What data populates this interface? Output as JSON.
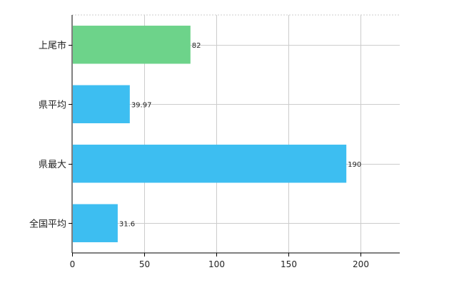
{
  "chart_data": {
    "type": "bar",
    "orientation": "horizontal",
    "categories": [
      "上尾市",
      "県平均",
      "県最大",
      "全国平均"
    ],
    "values": [
      82,
      39.97,
      190,
      31.6
    ],
    "value_labels": [
      "82",
      "39.97",
      "190",
      "31.6"
    ],
    "colors": [
      "#6dd38a",
      "#3dbef1",
      "#3dbef1",
      "#3dbef1"
    ],
    "xlim": [
      0,
      227
    ],
    "xticks": [
      0,
      50,
      100,
      150,
      200
    ],
    "xtick_labels": [
      "0",
      "50",
      "100",
      "150",
      "200"
    ],
    "grid": true,
    "title": "",
    "xlabel": "",
    "ylabel": ""
  }
}
